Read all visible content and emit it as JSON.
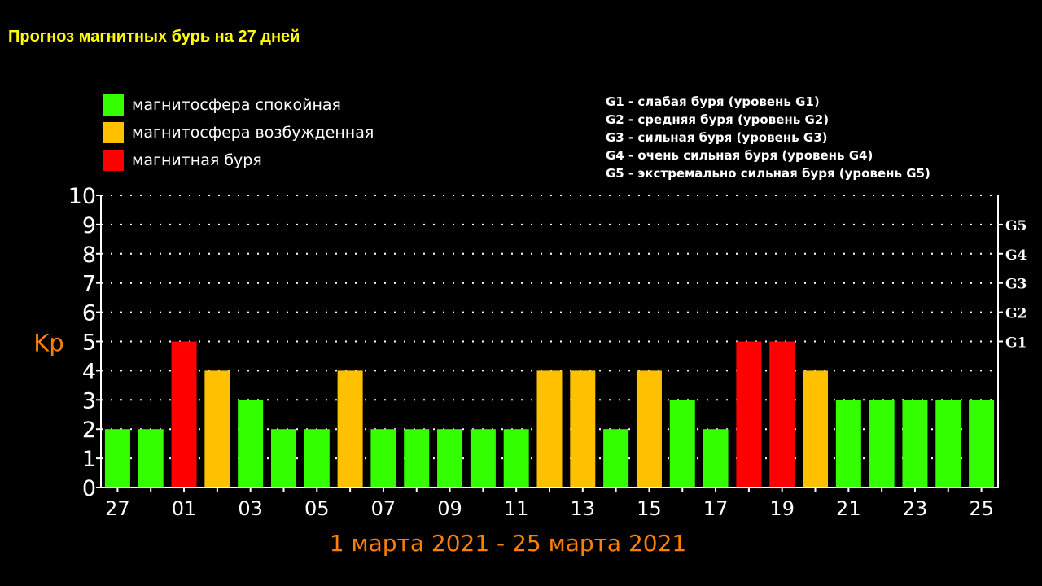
{
  "title": "Прогноз магнитных бурь на 27 дней",
  "legend": [
    {
      "label": "магнитосфера спокойная",
      "color": "#33ff00"
    },
    {
      "label": "магнитосфера возбужденная",
      "color": "#ffc000"
    },
    {
      "label": "магнитная буря",
      "color": "#ff0000"
    }
  ],
  "g_levels": [
    "G1 - слабая буря (уровень G1)",
    "G2 - средняя буря (уровень G2)",
    "G3 - сильная буря (уровень G3)",
    "G4 - очень сильная буря (уровень G4)",
    "G5 - экстремально сильная буря (уровень G5)"
  ],
  "chart_data": {
    "type": "bar",
    "ylabel": "Kp",
    "xlabel": "1 марта 2021 - 25 марта 2021",
    "ylim": [
      0,
      10
    ],
    "yticks": [
      "0",
      "1",
      "2",
      "3",
      "4",
      "5",
      "6",
      "7",
      "8",
      "9",
      "10"
    ],
    "right_ticks": [
      {
        "value": 5,
        "label": "G1"
      },
      {
        "value": 6,
        "label": "G2"
      },
      {
        "value": 7,
        "label": "G3"
      },
      {
        "value": 8,
        "label": "G4"
      },
      {
        "value": 9,
        "label": "G5"
      }
    ],
    "grid": true,
    "categories": [
      "27",
      "28",
      "01",
      "02",
      "03",
      "04",
      "05",
      "06",
      "07",
      "08",
      "09",
      "10",
      "11",
      "12",
      "13",
      "14",
      "15",
      "16",
      "17",
      "18",
      "19",
      "20",
      "21",
      "22",
      "23",
      "24",
      "25"
    ],
    "xtick_labels": [
      "27",
      "01",
      "03",
      "05",
      "07",
      "09",
      "11",
      "13",
      "15",
      "17",
      "19",
      "21",
      "23",
      "25"
    ],
    "values": [
      2,
      2,
      5,
      4,
      3,
      2,
      2,
      4,
      2,
      2,
      2,
      2,
      2,
      4,
      4,
      2,
      4,
      3,
      2,
      5,
      5,
      4,
      3,
      3,
      3,
      3,
      3
    ],
    "level_colors": {
      "quiet": "#33ff00",
      "active": "#ffc000",
      "storm": "#ff0000"
    },
    "axis_color": "#ffffff",
    "label_color": "#ff8000"
  }
}
